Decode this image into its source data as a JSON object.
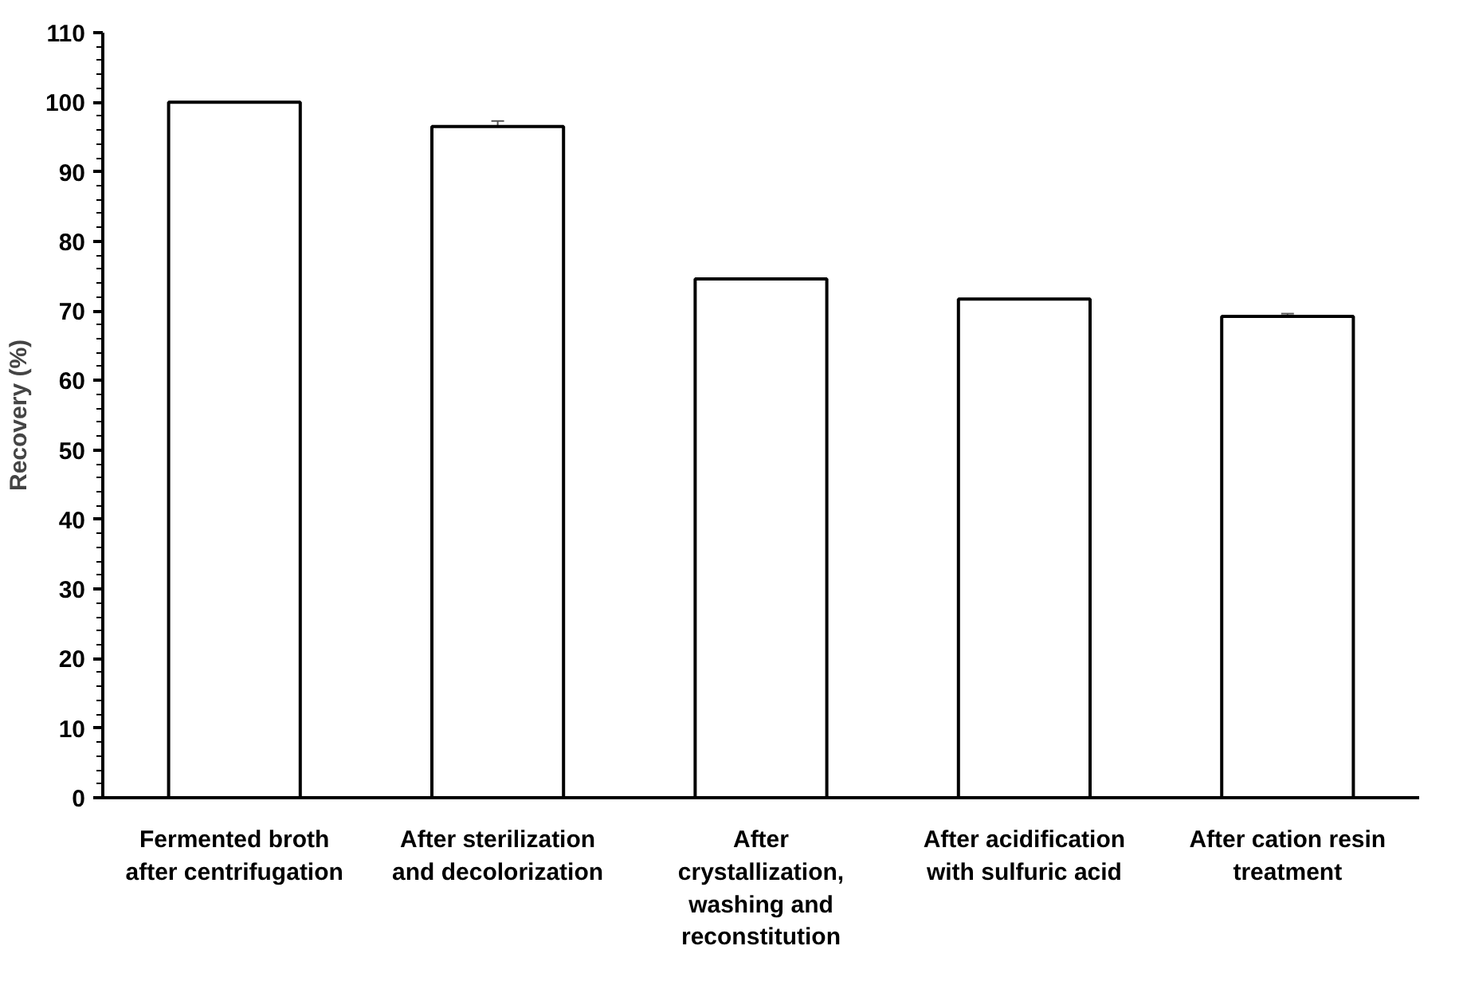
{
  "chart_data": {
    "type": "bar",
    "ylabel": "Recovery (%)",
    "categories": [
      "Fermented broth after centrifugation",
      "After sterilization and decolorization",
      "After crystallization, washing and reconstitution",
      "After acidification with sulfuric acid",
      "After cation resin treatment"
    ],
    "values": [
      100,
      96.5,
      74.6,
      71.7,
      69.2
    ],
    "errors": [
      null,
      0.8,
      null,
      null,
      0.4
    ],
    "color": "#ffffff",
    "ylim": [
      0,
      110
    ],
    "yticks": [
      0,
      10,
      20,
      30,
      40,
      50,
      60,
      70,
      80,
      90,
      100,
      110
    ],
    "grid": false
  }
}
